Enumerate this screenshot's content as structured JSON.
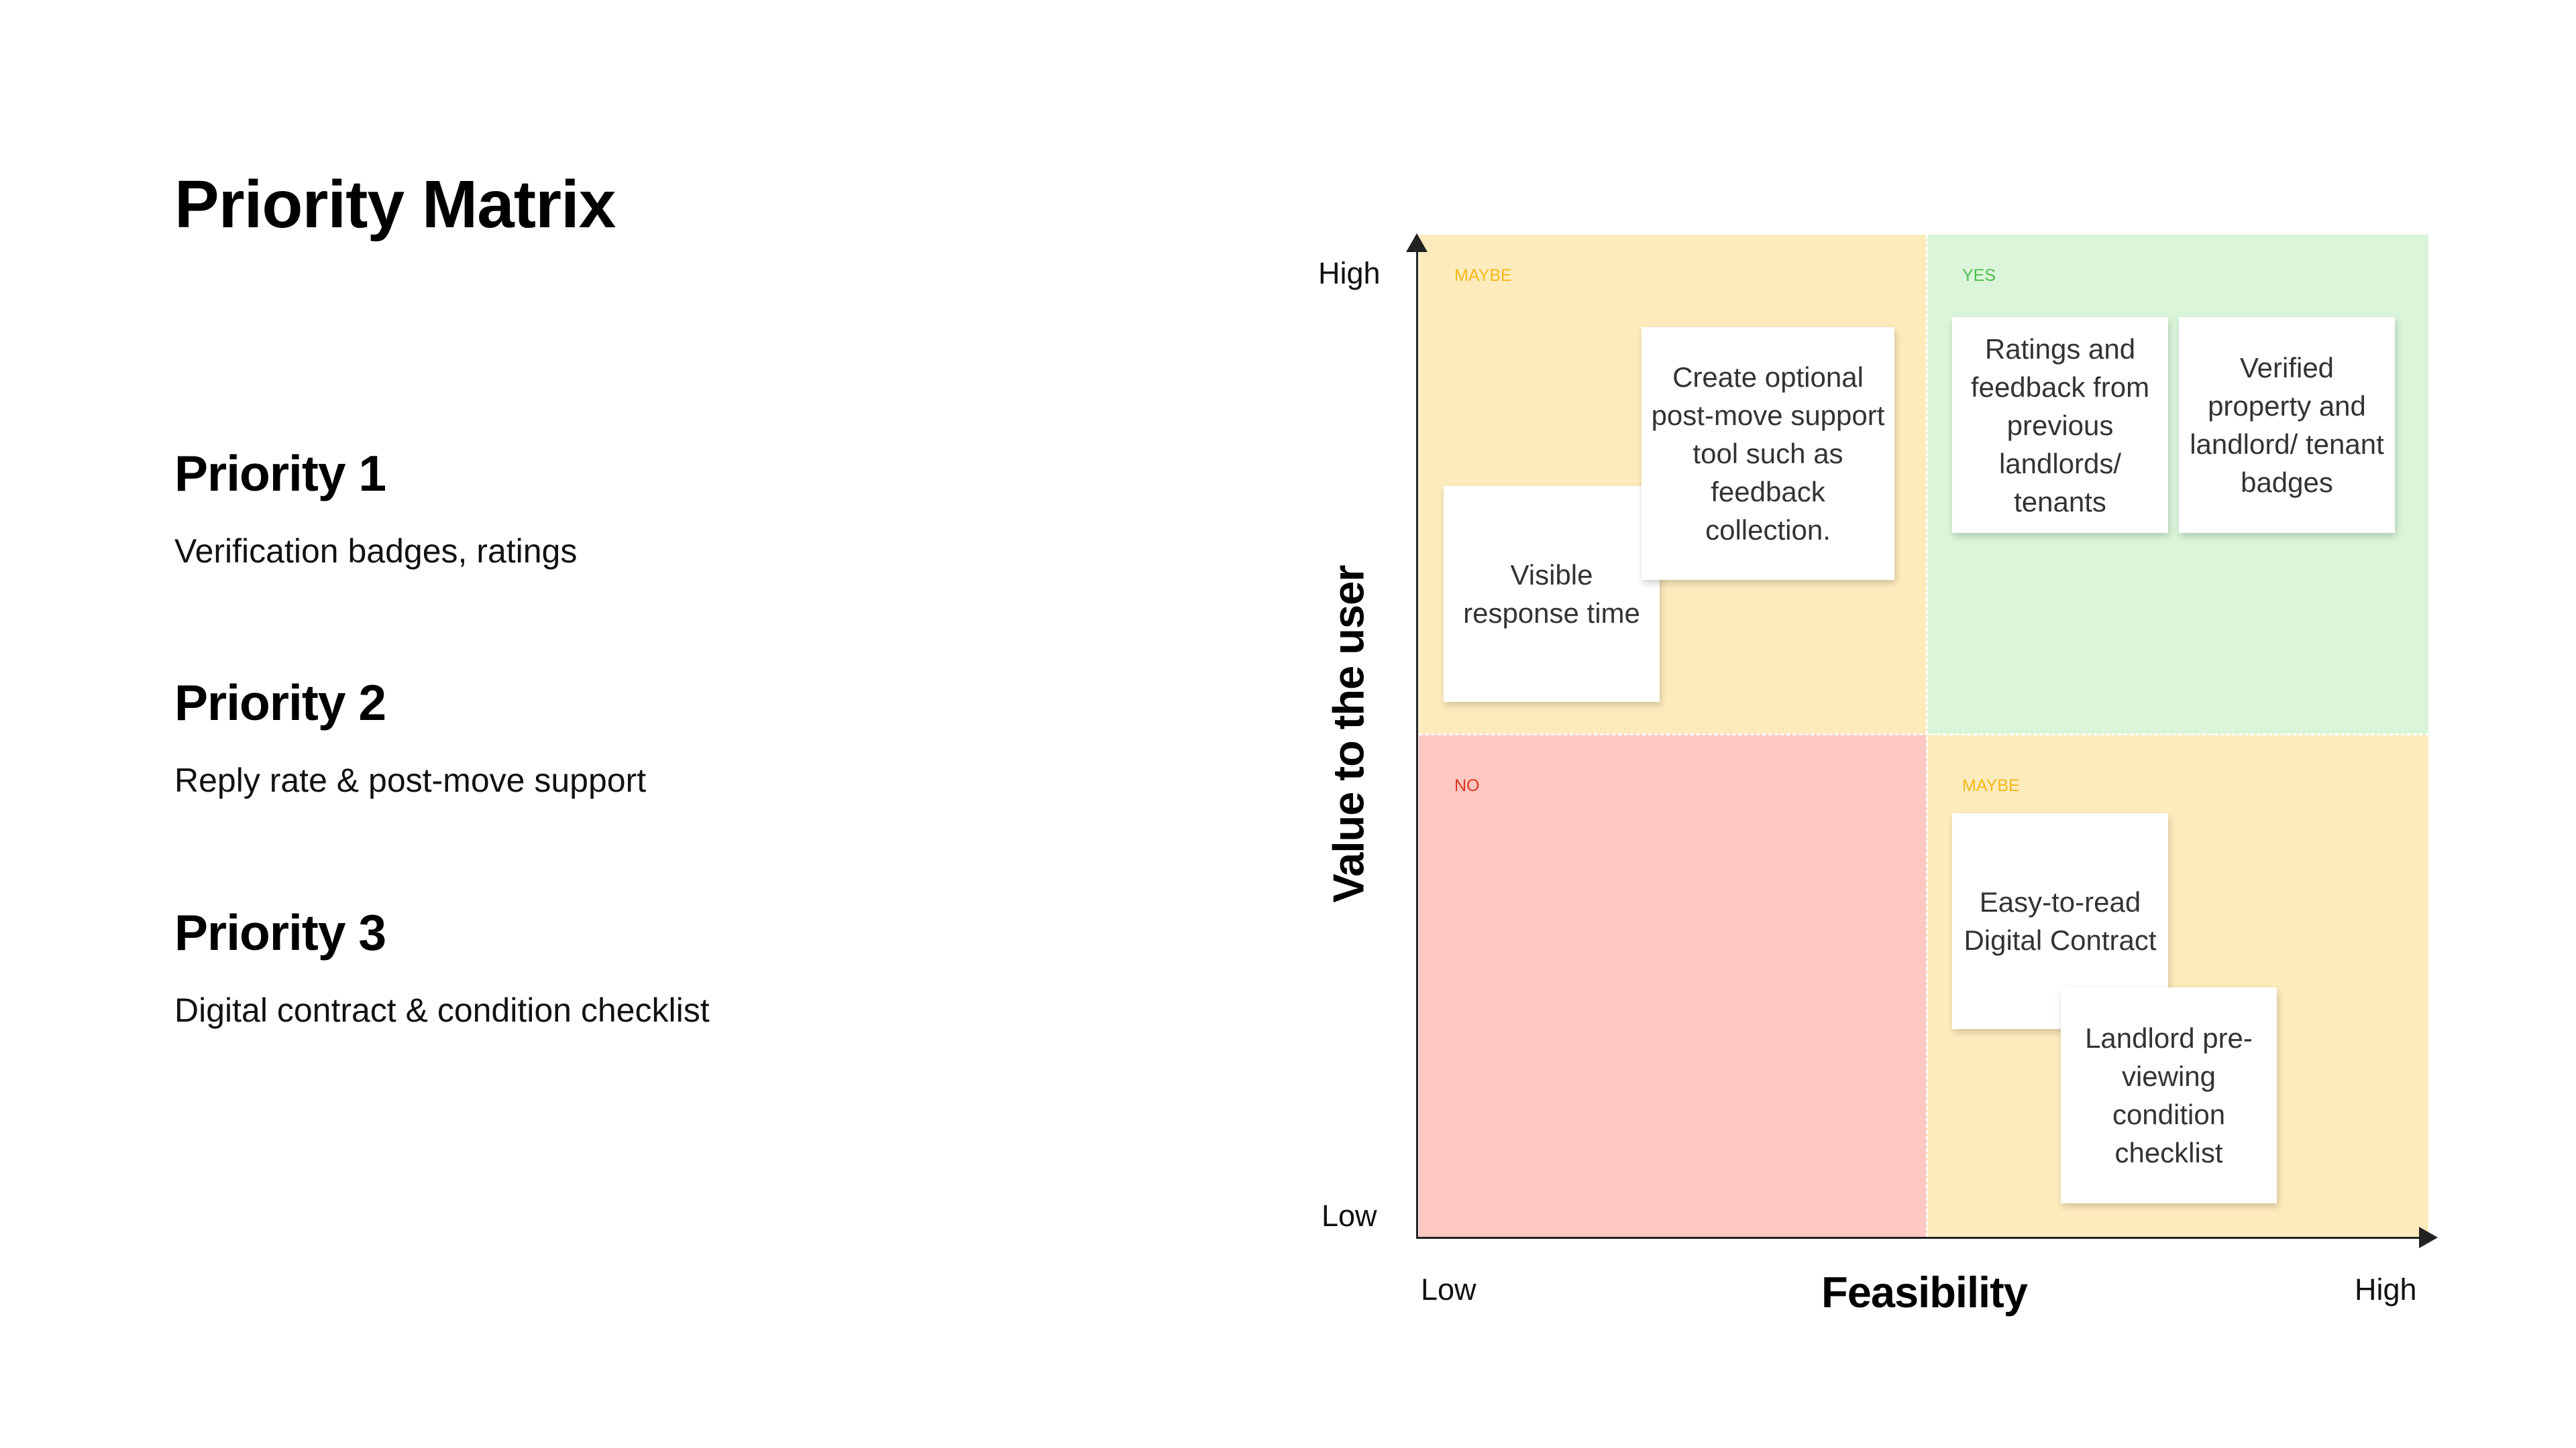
{
  "title": "Priority Matrix",
  "priorities": [
    {
      "heading": "Priority 1",
      "description": "Verification badges, ratings"
    },
    {
      "heading": "Priority 2",
      "description": "Reply rate & post-move support"
    },
    {
      "heading": "Priority 3",
      "description": "Digital contract & condition checklist"
    }
  ],
  "matrix": {
    "y_axis": {
      "title": "Value to the user",
      "high": "High",
      "low": "Low"
    },
    "x_axis": {
      "title": "Feasibility",
      "low": "Low",
      "high": "High"
    },
    "quadrants": {
      "top_left": {
        "label": "MAYBE",
        "color": "#feebbc",
        "label_color": "#f5b91b"
      },
      "top_right": {
        "label": "YES",
        "color": "#daf5da",
        "label_color": "#4cbf4c"
      },
      "bottom_left": {
        "label": "NO",
        "color": "#fdc7c2",
        "label_color": "#d9371e"
      },
      "bottom_right": {
        "label": "MAYBE",
        "color": "#feebbc",
        "label_color": "#f5b91b"
      }
    },
    "notes": {
      "visible_response_time": "Visible response time",
      "post_move_support": "Create optional post-move support tool such as feedback collection.",
      "ratings_feedback": "Ratings and feedback from previous landlords/ tenants",
      "verified_badges": "Verified property and landlord/ tenant badges",
      "digital_contract": "Easy-to-read Digital Contract",
      "condition_checklist": "Landlord pre-viewing condition checklist"
    }
  }
}
